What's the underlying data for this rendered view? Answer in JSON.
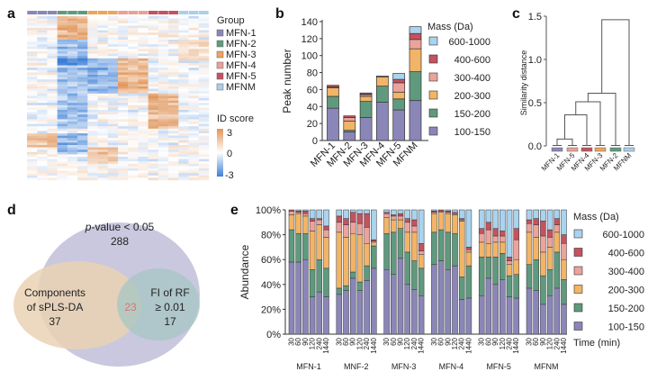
{
  "panels": {
    "a": "a",
    "b": "b",
    "c": "c",
    "d": "d",
    "e": "e"
  },
  "heatmap": {
    "legend_title": "Group",
    "groups": [
      {
        "name": "MFN-1",
        "color": "#8a86b8"
      },
      {
        "name": "MFN-2",
        "color": "#5f9a7e"
      },
      {
        "name": "MFN-3",
        "color": "#eca45c"
      },
      {
        "name": "MFN-4",
        "color": "#e8a196"
      },
      {
        "name": "MFN-5",
        "color": "#c4525f"
      },
      {
        "name": "MFNM",
        "color": "#a9cfeb"
      }
    ],
    "colorbar_title": "ID score",
    "colorbar_ticks": [
      "3",
      "0",
      "-3"
    ],
    "colorbar_colors": {
      "high": "#e0955a",
      "mid": "#ffffff",
      "low": "#3d7fd6"
    }
  },
  "mass_legend": {
    "title": "Mass (Da)",
    "items": [
      {
        "name": "600-1000",
        "color": "#a9d3ee"
      },
      {
        "name": "400-600",
        "color": "#c4525f"
      },
      {
        "name": "300-400",
        "color": "#eba39b"
      },
      {
        "name": "200-300",
        "color": "#f2b466"
      },
      {
        "name": "150-200",
        "color": "#5f9a7e"
      },
      {
        "name": "100-150",
        "color": "#8b86b8"
      }
    ]
  },
  "chart_data": [
    {
      "id": "b",
      "type": "bar",
      "stacked": true,
      "ylabel": "Peak number",
      "ylim": [
        0,
        140
      ],
      "yticks": [
        0,
        20,
        40,
        60,
        80,
        100,
        120,
        140
      ],
      "categories": [
        "MFN-1",
        "MFN-2",
        "MFN-3",
        "MFN-4",
        "MFN-5",
        "MFNM"
      ],
      "series": [
        {
          "name": "100-150",
          "values": [
            38,
            10,
            27,
            45,
            36,
            47
          ]
        },
        {
          "name": "150-200",
          "values": [
            14,
            2,
            19,
            19,
            13,
            34
          ]
        },
        {
          "name": "200-300",
          "values": [
            10,
            11,
            6,
            11,
            8,
            27
          ]
        },
        {
          "name": "300-400",
          "values": [
            1,
            4,
            2,
            0,
            11,
            11
          ]
        },
        {
          "name": "400-600",
          "values": [
            2,
            2,
            1,
            0,
            4,
            7
          ]
        },
        {
          "name": "600-1000",
          "values": [
            0,
            0,
            1,
            1,
            7,
            8
          ]
        }
      ],
      "legend_position": "right"
    },
    {
      "id": "c",
      "type": "dendrogram",
      "ylabel": "Similarity distance",
      "ylim": [
        0,
        1.5
      ],
      "yticks": [
        "0.0",
        "0.5",
        "1.0",
        "1.5"
      ],
      "leaves": [
        {
          "name": "MFN-1",
          "color": "#8a86b8"
        },
        {
          "name": "MFN-5",
          "color": "#e8a196"
        },
        {
          "name": "MFN-4",
          "color": "#c4525f"
        },
        {
          "name": "MFN-3",
          "color": "#eca45c"
        },
        {
          "name": "MFN-2",
          "color": "#5f9a7e"
        },
        {
          "name": "MFNM",
          "color": "#a9cfeb"
        }
      ],
      "merges": [
        [
          0,
          1,
          0.08
        ],
        [
          6,
          2,
          0.36
        ],
        [
          7,
          3,
          0.51
        ],
        [
          8,
          4,
          0.61
        ],
        [
          9,
          5,
          1.46
        ]
      ]
    },
    {
      "id": "d",
      "type": "venn",
      "sets": [
        {
          "label": "p-value < 0.05",
          "label_italic": "p",
          "label_rest": "-value < 0.05",
          "count": "288",
          "color": "#c9c8de"
        },
        {
          "label_lines": [
            "Components",
            "of sPLS-DA"
          ],
          "count": "37",
          "color": "#ead2b4"
        },
        {
          "label_lines": [
            "FI of RF",
            "≥ 0.01"
          ],
          "count": "17",
          "color": "#a6c6c3"
        }
      ],
      "intersection": {
        "count": "23",
        "color": "#d9727a"
      }
    },
    {
      "id": "e",
      "type": "bar",
      "stacked": true,
      "normalized": true,
      "ylabel": "Abundance",
      "yticks": [
        "0%",
        "20%",
        "40%",
        "60%",
        "80%",
        "100%"
      ],
      "xlabel": "Time (min)",
      "times": [
        "30",
        "60",
        "90",
        "120",
        "240",
        "1440"
      ],
      "series_order": [
        "100-150",
        "150-200",
        "200-300",
        "300-400",
        "400-600",
        "600-1000"
      ],
      "groups": [
        {
          "name": "MFN-1",
          "bars": [
            [
              58,
              26,
              12,
              3,
              1,
              0
            ],
            [
              58,
              23,
              16,
              1,
              1,
              1
            ],
            [
              60,
              21,
              14,
              2,
              2,
              1
            ],
            [
              30,
              22,
              31,
              8,
              2,
              7
            ],
            [
              34,
              26,
              28,
              4,
              1,
              7
            ],
            [
              30,
              23,
              25,
              6,
              3,
              13
            ]
          ]
        },
        {
          "name": "MNF-2",
          "bars": [
            [
              32,
              5,
              45,
              8,
              5,
              5
            ],
            [
              35,
              4,
              39,
              10,
              5,
              7
            ],
            [
              45,
              5,
              31,
              9,
              8,
              2
            ],
            [
              35,
              7,
              38,
              9,
              8,
              3
            ],
            [
              43,
              12,
              18,
              13,
              11,
              3
            ],
            [
              53,
              18,
              3,
              1,
              1,
              24
            ]
          ]
        },
        {
          "name": "MFN-3",
          "bars": [
            [
              52,
              29,
              13,
              3,
              1,
              2
            ],
            [
              48,
              34,
              10,
              3,
              1,
              4
            ],
            [
              61,
              24,
              7,
              3,
              2,
              3
            ],
            [
              40,
              26,
              16,
              8,
              3,
              7
            ],
            [
              36,
              23,
              23,
              5,
              5,
              8
            ],
            [
              31,
              22,
              11,
              3,
              6,
              27
            ]
          ]
        },
        {
          "name": "MFN-4",
          "bars": [
            [
              56,
              26,
              15,
              1,
              1,
              1
            ],
            [
              59,
              25,
              14,
              1,
              1,
              0
            ],
            [
              52,
              30,
              15,
              1,
              1,
              1
            ],
            [
              55,
              26,
              15,
              1,
              1,
              2
            ],
            [
              28,
              18,
              45,
              1,
              1,
              7
            ],
            [
              29,
              26,
              11,
              2,
              2,
              30
            ]
          ]
        },
        {
          "name": "MFN-5",
          "bars": [
            [
              31,
              31,
              12,
              7,
              4,
              15
            ],
            [
              45,
              17,
              11,
              11,
              6,
              10
            ],
            [
              40,
              22,
              12,
              5,
              6,
              15
            ],
            [
              44,
              21,
              9,
              5,
              4,
              17
            ],
            [
              30,
              17,
              9,
              3,
              3,
              38
            ],
            [
              29,
              19,
              12,
              16,
              9,
              15
            ]
          ]
        },
        {
          "name": "MFNM",
          "bars": [
            [
              37,
              19,
              26,
              7,
              3,
              8
            ],
            [
              35,
              25,
              18,
              10,
              5,
              7
            ],
            [
              24,
              23,
              19,
              13,
              12,
              9
            ],
            [
              31,
              21,
              18,
              8,
              6,
              16
            ],
            [
              37,
              29,
              16,
              6,
              5,
              7
            ],
            [
              24,
              20,
              16,
              13,
              7,
              20
            ]
          ]
        }
      ]
    }
  ]
}
